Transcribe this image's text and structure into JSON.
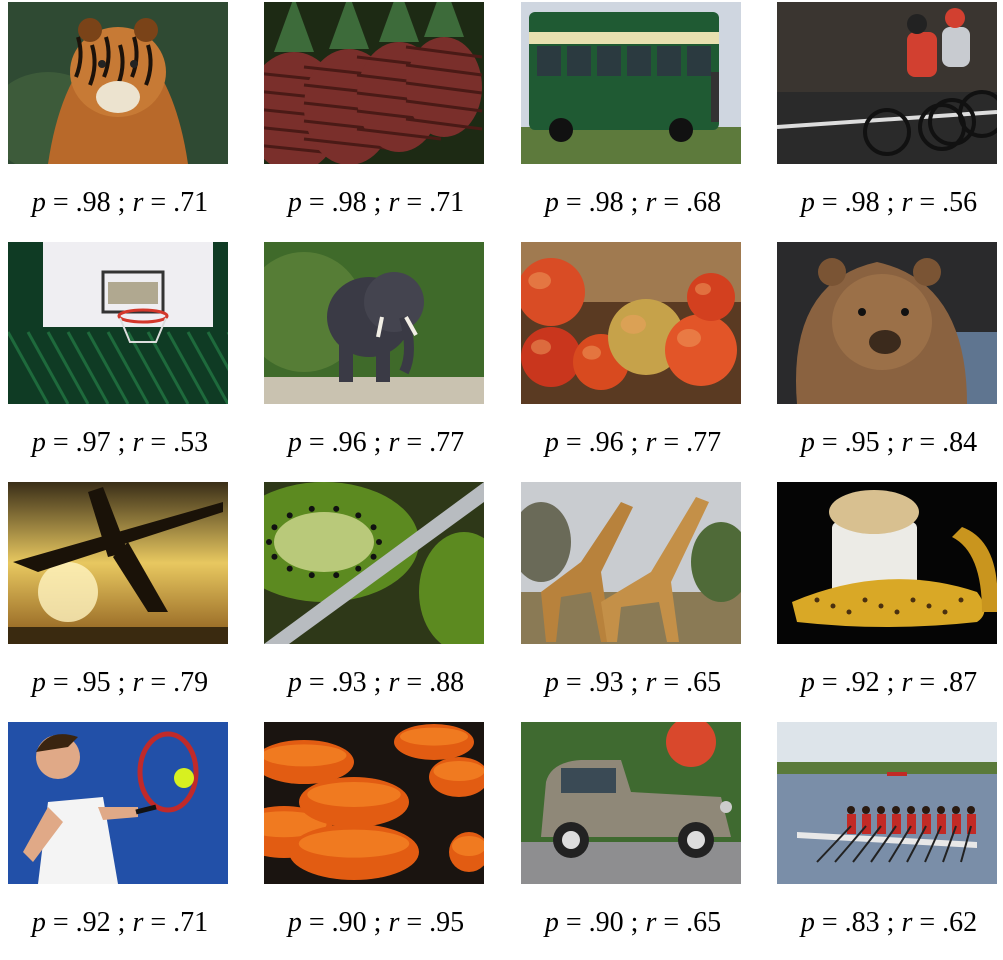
{
  "figure": {
    "columns": 4,
    "items": [
      {
        "subject": "tiger",
        "precision": ".98",
        "recall": ".71"
      },
      {
        "subject": "pineapples",
        "precision": ".98",
        "recall": ".71"
      },
      {
        "subject": "green bus",
        "precision": ".98",
        "recall": ".68"
      },
      {
        "subject": "cyclists",
        "precision": ".98",
        "recall": ".56"
      },
      {
        "subject": "basketball hoop",
        "precision": ".97",
        "recall": ".53"
      },
      {
        "subject": "elephant",
        "precision": ".96",
        "recall": ".77"
      },
      {
        "subject": "apples",
        "precision": ".96",
        "recall": ".77"
      },
      {
        "subject": "bear",
        "precision": ".95",
        "recall": ".84"
      },
      {
        "subject": "airplane at sunset",
        "precision": ".95",
        "recall": ".79"
      },
      {
        "subject": "kiwi with knife",
        "precision": ".93",
        "recall": ".88"
      },
      {
        "subject": "giraffes",
        "precision": ".93",
        "recall": ".65"
      },
      {
        "subject": "banana and bowl",
        "precision": ".92",
        "recall": ".87"
      },
      {
        "subject": "tennis player",
        "precision": ".92",
        "recall": ".71"
      },
      {
        "subject": "orange slices",
        "precision": ".90",
        "recall": ".95"
      },
      {
        "subject": "vintage car",
        "precision": ".90",
        "recall": ".65"
      },
      {
        "subject": "rowing crew",
        "precision": ".83",
        "recall": ".62"
      }
    ]
  }
}
